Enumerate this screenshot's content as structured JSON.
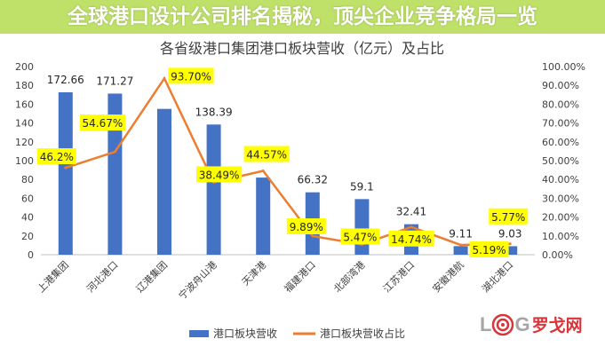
{
  "chart_data": {
    "type": "bar+line",
    "title": "各省级港口集团港口板块营收（亿元）及占比",
    "categories": [
      "上港集团",
      "河北港口",
      "辽港集团",
      "宁波舟山港",
      "天津港",
      "福建港口",
      "北部湾港",
      "江苏港口",
      "安徽港航",
      "湖北港口"
    ],
    "series": [
      {
        "name": "港口板块营收",
        "type": "bar",
        "axis": "left",
        "color": "#4472c4",
        "values": [
          172.66,
          171.27,
          155,
          138.39,
          82,
          66.32,
          59.1,
          32.41,
          9.11,
          9.03
        ],
        "labels": [
          "172.66",
          "171.27",
          "",
          "138.39",
          "",
          "66.32",
          "59.1",
          "32.41",
          "9.11",
          "9.03"
        ]
      },
      {
        "name": "港口板块营收占比",
        "type": "line",
        "axis": "right",
        "color": "#ed7d31",
        "values": [
          46.2,
          54.67,
          93.7,
          38.49,
          44.57,
          9.89,
          5.47,
          14.74,
          5.19,
          5.77
        ],
        "labels": [
          "46.2%",
          "54.67%",
          "93.70%",
          "38.49%",
          "44.57%",
          "9.89%",
          "5.47%",
          "14.74%",
          "5.19%",
          "5.77%"
        ]
      }
    ],
    "y_left": {
      "range": [
        0,
        200
      ],
      "ticks": [
        "0",
        "20",
        "40",
        "60",
        "80",
        "100",
        "120",
        "140",
        "160",
        "180",
        "200"
      ]
    },
    "y_right": {
      "range": [
        0,
        100
      ],
      "ticks": [
        "0.00%",
        "10.00%",
        "20.00%",
        "30.00%",
        "40.00%",
        "50.00%",
        "60.00%",
        "70.00%",
        "80.00%",
        "90.00%",
        "100.00%"
      ]
    },
    "label_box_color": "#ffff00",
    "legend_placement": "bottom",
    "grid": false
  },
  "banner": {
    "title": "全球港口设计公司排名揭秘，顶尖企业竞争格局一览"
  },
  "logo": {
    "text": "LOG罗戈网"
  }
}
